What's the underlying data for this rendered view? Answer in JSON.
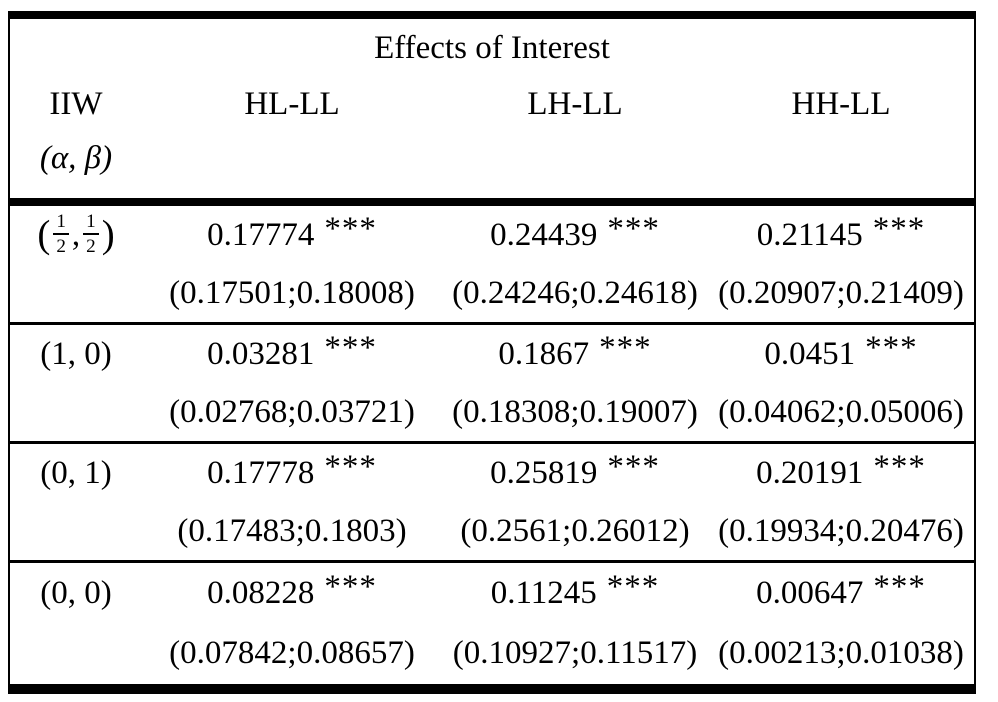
{
  "table": {
    "title": "Effects of Interest",
    "header": {
      "col1": "IIW",
      "col2": "HL-LL",
      "col3": "LH-LL",
      "col4": "HH-LL",
      "sub1": "(α, β)"
    },
    "rows": [
      {
        "iiw": {
          "open": "(",
          "num1": "1",
          "den1": "2",
          "comma": ",",
          "num2": "1",
          "den2": "2",
          "close": ")"
        },
        "estimates": [
          {
            "value": "0.17774",
            "stars": "***",
            "ci": "(0.17501;0.18008)"
          },
          {
            "value": "0.24439",
            "stars": "***",
            "ci": "(0.24246;0.24618)"
          },
          {
            "value": "0.21145",
            "stars": "***",
            "ci": "(0.20907;0.21409)"
          }
        ]
      },
      {
        "iiw": {
          "label": "(1, 0)"
        },
        "estimates": [
          {
            "value": "0.03281",
            "stars": "***",
            "ci": "(0.02768;0.03721)"
          },
          {
            "value": "0.1867",
            "stars": "***",
            "ci": "(0.18308;0.19007)"
          },
          {
            "value": "0.0451",
            "stars": "***",
            "ci": "(0.04062;0.05006)"
          }
        ]
      },
      {
        "iiw": {
          "label": "(0, 1)"
        },
        "estimates": [
          {
            "value": "0.17778",
            "stars": "***",
            "ci": "(0.17483;0.1803)"
          },
          {
            "value": "0.25819",
            "stars": "***",
            "ci": "(0.2561;0.26012)"
          },
          {
            "value": "0.20191",
            "stars": "***",
            "ci": "(0.19934;0.20476)"
          }
        ]
      },
      {
        "iiw": {
          "label": "(0, 0)"
        },
        "estimates": [
          {
            "value": "0.08228",
            "stars": "***",
            "ci": "(0.07842;0.08657)"
          },
          {
            "value": "0.11245",
            "stars": "***",
            "ci": "(0.10927;0.11517)"
          },
          {
            "value": "0.00647",
            "stars": "***",
            "ci": "(0.00213;0.01038)"
          }
        ]
      }
    ]
  },
  "colors": {
    "background": "#ffffff",
    "text": "#000000",
    "rule": "#000000"
  }
}
